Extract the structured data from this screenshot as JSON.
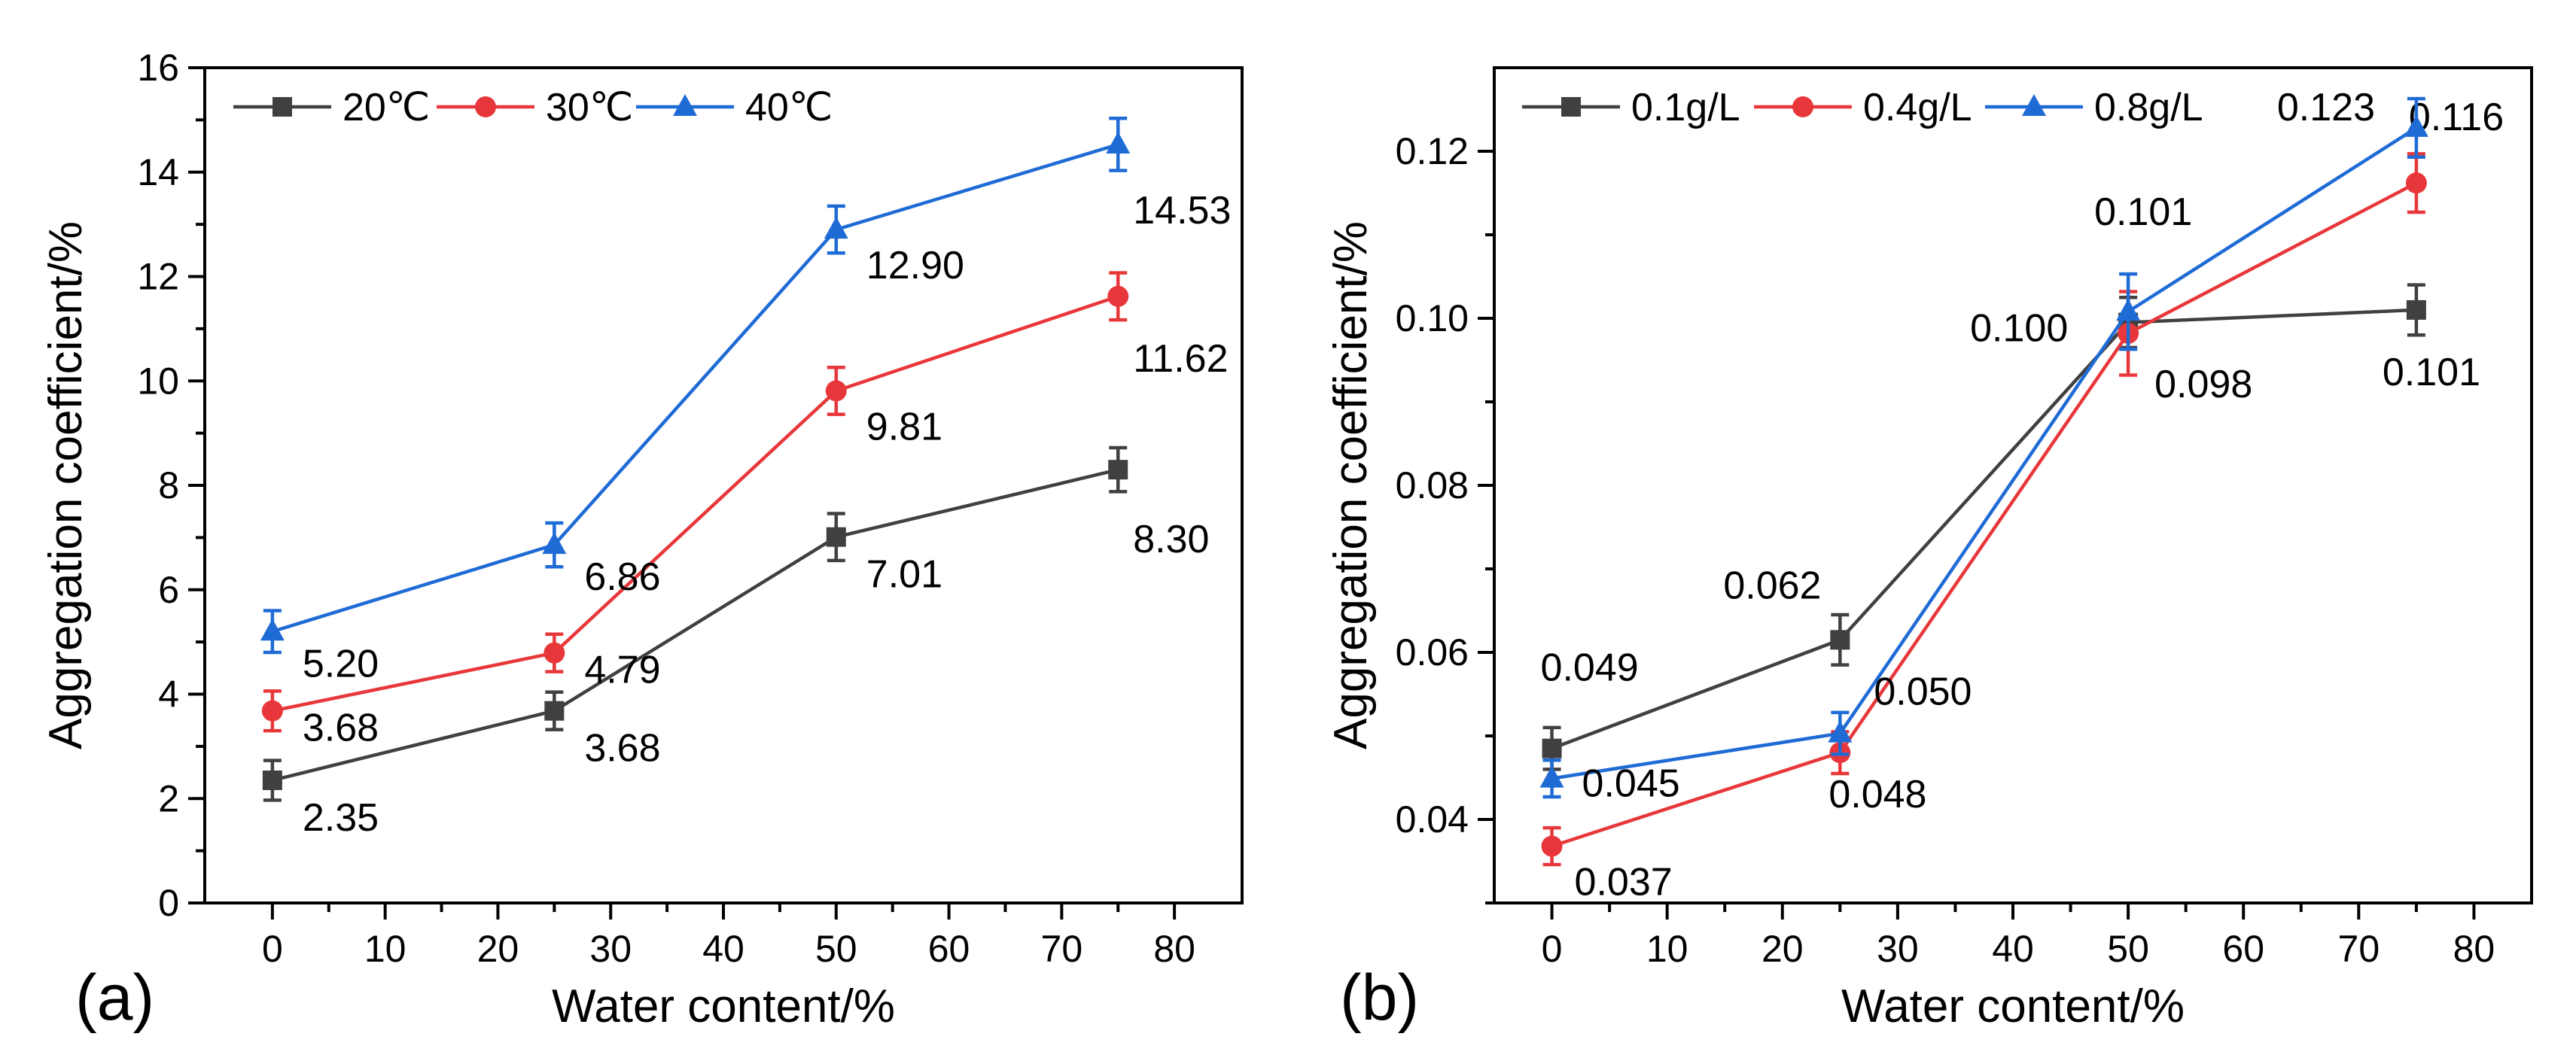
{
  "chart_data": [
    {
      "type": "line",
      "panel_label": "(a)",
      "xlabel": "Water content/%",
      "ylabel": "Aggregation coefficient/%",
      "xlim": [
        -6,
        86
      ],
      "ylim": [
        0,
        16
      ],
      "xticks": [
        0,
        10,
        20,
        30,
        40,
        50,
        60,
        70,
        80
      ],
      "yticks": [
        0,
        2,
        4,
        6,
        8,
        10,
        12,
        14,
        16
      ],
      "ytick_labels": [
        "0",
        "2",
        "4",
        "6",
        "8",
        "10",
        "12",
        "14",
        "16"
      ],
      "x": [
        0,
        25,
        50,
        75
      ],
      "legend_position": "top-left",
      "series": [
        {
          "name": "20℃",
          "color": "#404040",
          "marker": "square",
          "values": [
            2.35,
            3.68,
            7.01,
            8.3
          ],
          "errors": [
            0.38,
            0.36,
            0.45,
            0.42
          ],
          "labels": [
            "2.35",
            "3.68",
            "7.01",
            "8.30"
          ]
        },
        {
          "name": "30℃",
          "color": "#e8373a",
          "marker": "circle",
          "values": [
            3.68,
            4.79,
            9.81,
            11.62
          ],
          "errors": [
            0.38,
            0.36,
            0.45,
            0.45
          ],
          "labels": [
            "3.68",
            "4.79",
            "9.81",
            "11.62"
          ]
        },
        {
          "name": "40℃",
          "color": "#1f6bd6",
          "marker": "triangle",
          "values": [
            5.2,
            6.86,
            12.9,
            14.53
          ],
          "errors": [
            0.4,
            0.42,
            0.45,
            0.5
          ],
          "labels": [
            "5.20",
            "6.86",
            "12.90",
            "14.53"
          ]
        }
      ]
    },
    {
      "type": "line",
      "panel_label": "(b)",
      "xlabel": "Water content/%",
      "ylabel": "Aggregation coefficient/%",
      "xlim": [
        -5,
        85
      ],
      "ylim": [
        0.03,
        0.13
      ],
      "xticks": [
        0,
        10,
        20,
        30,
        40,
        50,
        60,
        70,
        80
      ],
      "yticks": [
        0.04,
        0.06,
        0.08,
        0.1,
        0.12
      ],
      "ytick_labels": [
        "0.04",
        "0.06",
        "0.08",
        "0.10",
        "0.12"
      ],
      "x": [
        0,
        25,
        50,
        75
      ],
      "legend_position": "top-left",
      "series": [
        {
          "name": "0.1g/L",
          "color": "#404040",
          "marker": "square",
          "values": [
            0.0485,
            0.0615,
            0.0995,
            0.101
          ],
          "errors": [
            0.0025,
            0.003,
            0.003,
            0.003
          ],
          "labels": [
            "0.049",
            "0.062",
            "0.100",
            "0.101"
          ]
        },
        {
          "name": "0.4g/L",
          "color": "#e8373a",
          "marker": "circle",
          "values": [
            0.0368,
            0.048,
            0.0982,
            0.1162
          ],
          "errors": [
            0.0022,
            0.0025,
            0.005,
            0.0035
          ],
          "labels": [
            "0.037",
            "0.048",
            "0.098",
            "0.116"
          ]
        },
        {
          "name": "0.8g/L",
          "color": "#1f6bd6",
          "marker": "triangle",
          "values": [
            0.0449,
            0.0503,
            0.1008,
            0.1228
          ],
          "errors": [
            0.0022,
            0.0025,
            0.0045,
            0.0035
          ],
          "labels": [
            "0.045",
            "0.050",
            "0.101",
            "0.123"
          ]
        }
      ]
    }
  ]
}
